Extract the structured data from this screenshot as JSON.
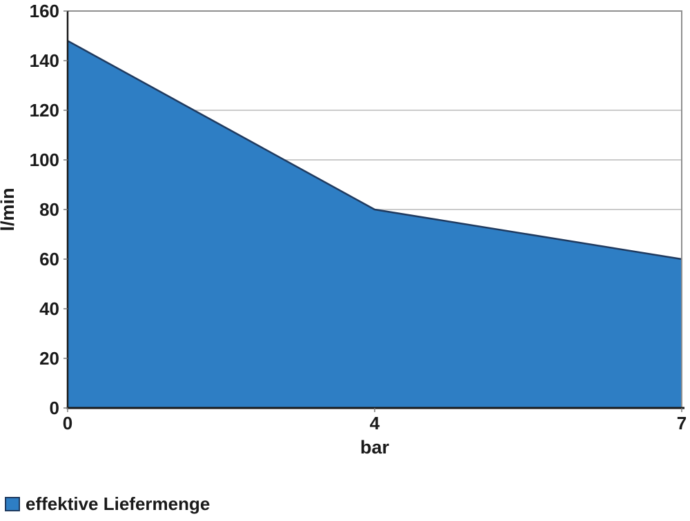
{
  "colors": {
    "background": "#ffffff",
    "area_fill": "#2E7EC4",
    "area_stroke": "#1F3A5F",
    "axis_line": "#1a1a1a",
    "tick_mark": "#7a7a7a",
    "gridline": "#cbcbcb",
    "plot_border": "#8f8f8f",
    "text": "#1a1a1a",
    "legend_swatch_fill": "#2E7EC4",
    "legend_swatch_border": "#1F3A5F"
  },
  "chart_data": {
    "type": "area",
    "title": "",
    "xlabel": "bar",
    "ylabel": "l/min",
    "x_axis_type": "category",
    "categories": [
      "0",
      "4",
      "7"
    ],
    "series": [
      {
        "name": "effektive Liefermenge",
        "values": [
          148,
          80,
          60
        ]
      }
    ],
    "ylim": [
      0,
      160
    ],
    "yticks": [
      0,
      20,
      40,
      60,
      80,
      100,
      120,
      140,
      160
    ],
    "gridlines_y": [
      80,
      100,
      120
    ],
    "grid": "horizontal-partial",
    "legend_position": "bottom-left"
  },
  "legend": {
    "label": "effektive Liefermenge"
  }
}
